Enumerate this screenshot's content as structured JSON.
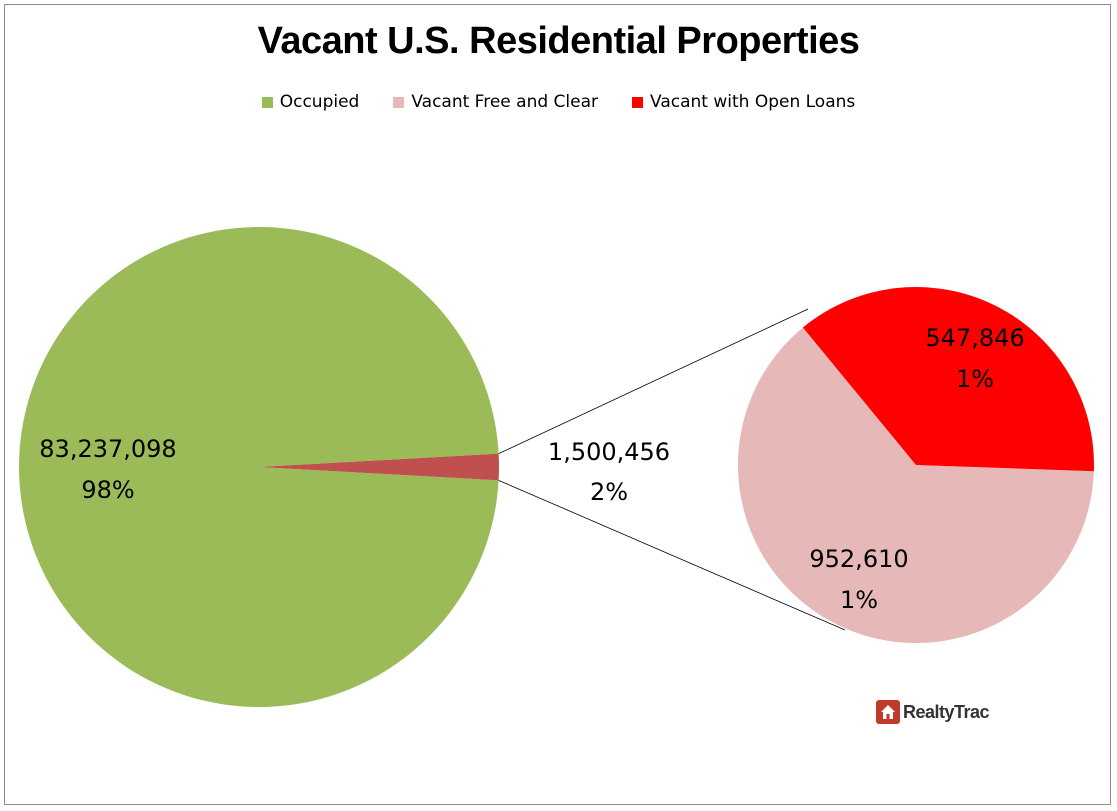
{
  "chart_data": {
    "type": "bar-of-pie",
    "title": "Vacant U.S. Residential Properties",
    "legend_position": "top",
    "legend": [
      {
        "name": "Occupied",
        "color": "#9bbb59"
      },
      {
        "name": "Vacant Free and Clear",
        "color": "#e6b9b8"
      },
      {
        "name": "Vacant with Open Loans",
        "color": "#ff0000"
      }
    ],
    "main_pie": [
      {
        "name": "Occupied",
        "value": 83237098,
        "label": "83,237,098",
        "percent": "98%",
        "color": "#9bbb59"
      },
      {
        "name": "Vacant",
        "value": 1500456,
        "label": "1,500,456",
        "percent": "2%",
        "color": "#c0504d"
      }
    ],
    "secondary_pie": [
      {
        "name": "Vacant Free and Clear",
        "value": 952610,
        "label": "952,610",
        "percent": "1%",
        "color": "#e6b9b8"
      },
      {
        "name": "Vacant with Open Loans",
        "value": 547846,
        "label": "547,846",
        "percent": "1%",
        "color": "#ff0000"
      }
    ]
  },
  "logo": {
    "text": "RealtyTrac",
    "icon": "house-icon"
  }
}
